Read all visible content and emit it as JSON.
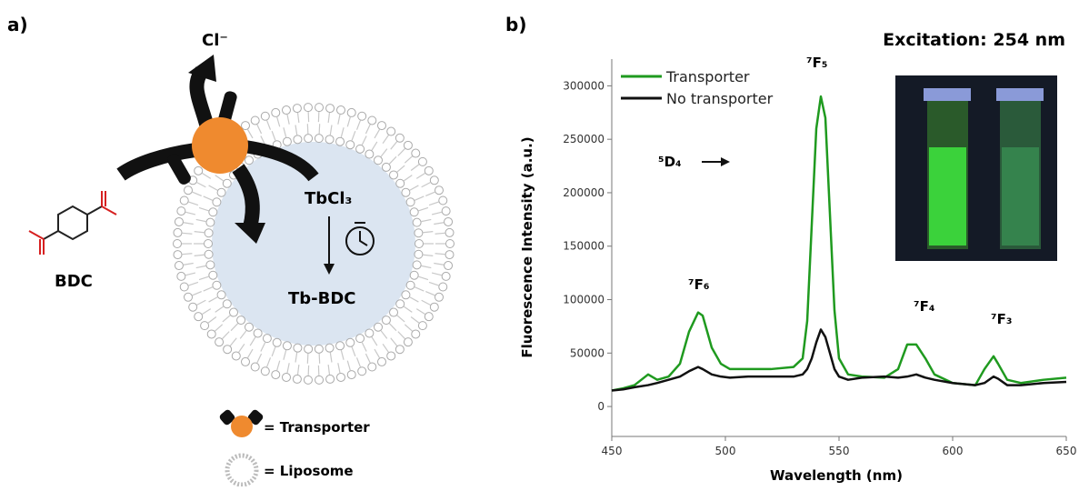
{
  "panel_a": {
    "label": "a)",
    "ion": "Cl⁻",
    "salt": "TbCl₃",
    "product": "Tb-BDC",
    "molecule": "BDC",
    "legend_transporter": "= Transporter",
    "legend_liposome": "= Liposome"
  },
  "chart_data": {
    "type": "line",
    "panel_label": "b)",
    "title": "Excitation: 254 nm",
    "x_label": "Wavelength (nm)",
    "y_label": "Fluorescence Intensity (a.u.)",
    "x": [
      450,
      455,
      460,
      466,
      470,
      475,
      480,
      484,
      488,
      490,
      494,
      498,
      502,
      510,
      520,
      530,
      534,
      536,
      538,
      540,
      542,
      544,
      546,
      548,
      550,
      554,
      560,
      570,
      576,
      580,
      584,
      588,
      592,
      600,
      610,
      614,
      618,
      620,
      624,
      630,
      640,
      650
    ],
    "series": [
      {
        "name": "Transporter",
        "color": "#1f9a1f",
        "values": [
          15000,
          17000,
          20000,
          30000,
          25000,
          28000,
          40000,
          70000,
          88000,
          85000,
          55000,
          40000,
          35000,
          35000,
          35000,
          37000,
          45000,
          80000,
          170000,
          260000,
          290000,
          270000,
          180000,
          90000,
          45000,
          30000,
          28000,
          27000,
          35000,
          58000,
          58000,
          45000,
          30000,
          22000,
          20000,
          35000,
          47000,
          40000,
          25000,
          22000,
          25000,
          27000
        ]
      },
      {
        "name": "No transporter",
        "color": "#111111",
        "values": [
          15000,
          16000,
          18000,
          20000,
          22000,
          25000,
          28000,
          33000,
          37000,
          35000,
          30000,
          28000,
          27000,
          28000,
          28000,
          28000,
          30000,
          35000,
          45000,
          60000,
          72000,
          65000,
          50000,
          35000,
          28000,
          25000,
          27000,
          28000,
          27000,
          28000,
          30000,
          27000,
          25000,
          22000,
          20000,
          22000,
          28000,
          26000,
          20000,
          20000,
          22000,
          23000
        ]
      }
    ],
    "xlim": [
      450,
      650
    ],
    "xticks": [
      450,
      500,
      550,
      600,
      650
    ],
    "ylim": [
      -28000,
      325000
    ],
    "yticks": [
      0,
      50000,
      100000,
      150000,
      200000,
      250000,
      300000
    ],
    "legend": "upper left",
    "annotations": [
      "⁷F₆",
      "⁷F₅",
      "⁷F₄",
      "⁷F₃",
      "⁵D₄"
    ]
  }
}
